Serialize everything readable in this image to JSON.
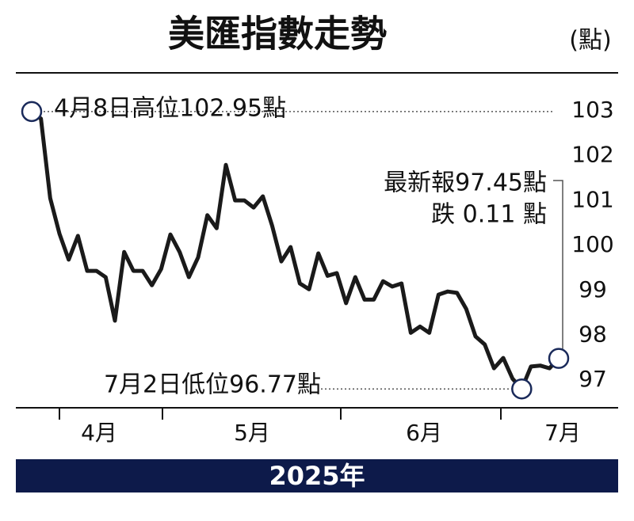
{
  "chart_data": {
    "type": "line",
    "title": "美匯指數走勢",
    "unit_label": "(點)",
    "footer": "2025年",
    "months": [
      "4月",
      "5月",
      "6月",
      "7月"
    ],
    "series": [
      {
        "name": "美匯指數",
        "color": "#1a1a1a",
        "values": [
          102.95,
          102.79,
          101.02,
          100.23,
          99.65,
          100.18,
          99.4,
          99.4,
          99.26,
          98.29,
          99.82,
          99.4,
          99.4,
          99.08,
          99.44,
          100.21,
          99.82,
          99.26,
          99.7,
          100.64,
          100.35,
          101.76,
          100.97,
          100.97,
          100.81,
          101.06,
          100.41,
          99.61,
          99.93,
          99.12,
          98.99,
          99.79,
          99.29,
          99.35,
          98.68,
          99.26,
          98.76,
          98.76,
          99.17,
          99.05,
          99.12,
          98.02,
          98.16,
          98.02,
          98.87,
          98.94,
          98.91,
          98.55,
          97.94,
          97.76,
          97.23,
          97.46,
          97.0,
          96.77,
          97.27,
          97.29,
          97.23,
          97.45
        ]
      }
    ],
    "ylim": [
      96.35,
      103.67
    ],
    "yticks": [
      97,
      98,
      99,
      100,
      101,
      102,
      103
    ],
    "annotations": [
      "4月8日高位102.95點",
      "最新報97.45點",
      "跌 0.11 點",
      "7月2日低位96.77點"
    ],
    "marker_color": "#1a2a5a",
    "footer_color": "#0d1a4a"
  }
}
